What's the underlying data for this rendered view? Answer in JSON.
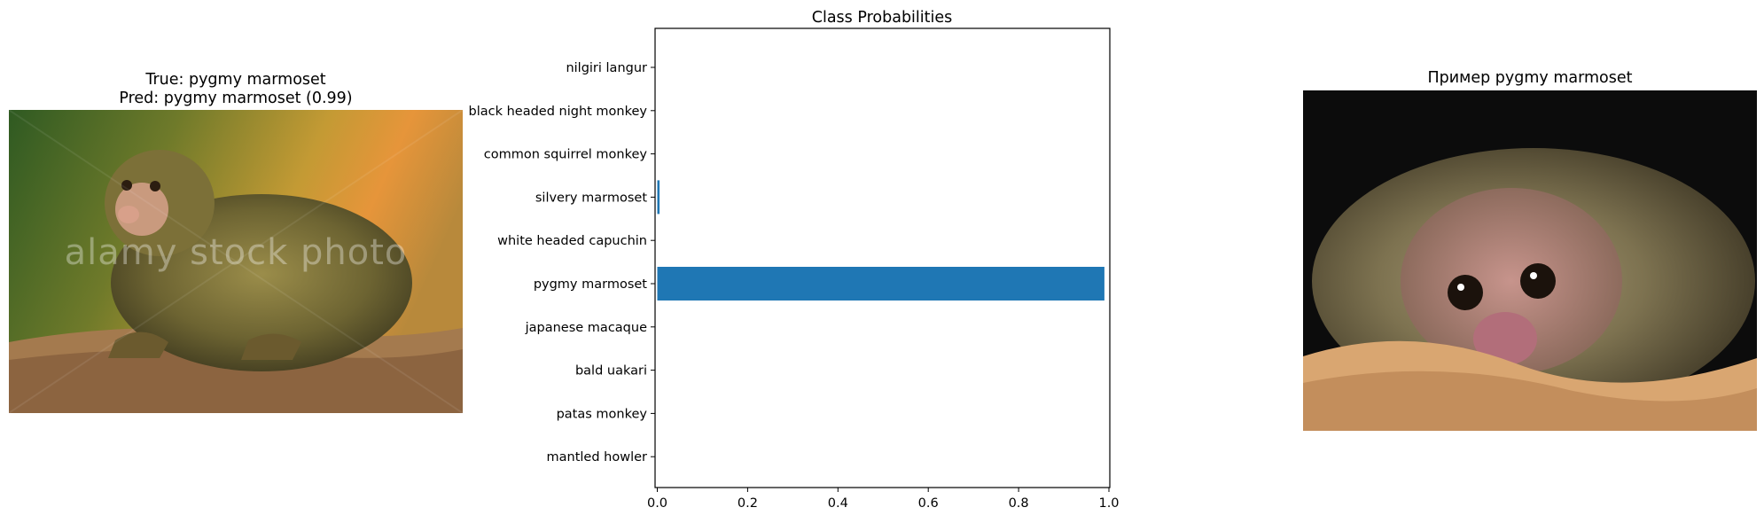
{
  "left_panel": {
    "title_line1": "True: pygmy marmoset",
    "title_line2": "Pred: pygmy marmoset (0.99)",
    "watermark": "alamy stock photo",
    "image": "pygmy marmoset on branch photo"
  },
  "right_panel": {
    "title": "Пример pygmy marmoset",
    "image": "pygmy marmoset close-up photo"
  },
  "colors": {
    "bar": "#1f77b4",
    "axis": "#000000"
  },
  "chart_data": {
    "type": "bar",
    "orientation": "horizontal",
    "title": "Class Probabilities",
    "xlabel": "",
    "ylabel": "",
    "categories": [
      "nilgiri langur",
      "black headed night monkey",
      "common squirrel monkey",
      "silvery marmoset",
      "white headed capuchin",
      "pygmy marmoset",
      "japanese macaque",
      "bald uakari",
      "patas monkey",
      "mantled howler"
    ],
    "values": [
      0.0,
      0.0,
      0.0,
      0.005,
      0.0,
      0.99,
      0.0,
      0.0,
      0.0,
      0.0
    ],
    "xlim": [
      0,
      1.0
    ],
    "xticks": [
      "0.0",
      "0.2",
      "0.4",
      "0.6",
      "0.8",
      "1.0"
    ],
    "grid": false
  }
}
